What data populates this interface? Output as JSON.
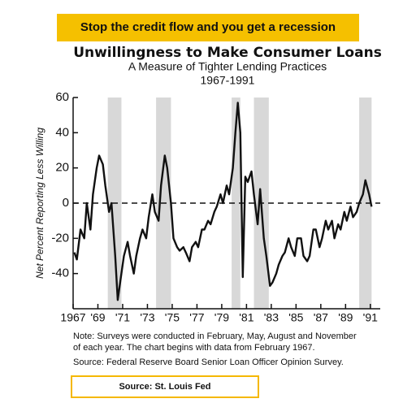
{
  "chart_data": {
    "type": "line",
    "banner": "Stop the credit flow and you get a recession",
    "title": "Unwillingness to Make Consumer Loans",
    "subtitle": "A Measure of Tighter Lending Practices",
    "period": "1967-1991",
    "y_label": "Net Percent Reporting Less Willing",
    "x": [
      1967.1,
      1967.3,
      1967.6,
      1967.9,
      1968.1,
      1968.4,
      1968.6,
      1968.9,
      1969.1,
      1969.4,
      1969.6,
      1969.9,
      1970.1,
      1970.4,
      1970.6,
      1970.9,
      1971.1,
      1971.4,
      1971.6,
      1971.9,
      1972.1,
      1972.4,
      1972.6,
      1972.9,
      1973.1,
      1973.4,
      1973.6,
      1973.9,
      1974.1,
      1974.4,
      1974.6,
      1974.9,
      1975.1,
      1975.4,
      1975.6,
      1975.9,
      1976.1,
      1976.4,
      1976.6,
      1976.9,
      1977.1,
      1977.4,
      1977.6,
      1977.9,
      1978.1,
      1978.4,
      1978.6,
      1978.9,
      1979.1,
      1979.4,
      1979.6,
      1979.9,
      1980.1,
      1980.3,
      1980.5,
      1980.7,
      1980.9,
      1981.1,
      1981.4,
      1981.6,
      1981.9,
      1982.1,
      1982.4,
      1982.6,
      1982.9,
      1983.1,
      1983.4,
      1983.6,
      1983.9,
      1984.1,
      1984.4,
      1984.6,
      1984.9,
      1985.1,
      1985.4,
      1985.6,
      1985.9,
      1986.1,
      1986.4,
      1986.6,
      1986.9,
      1987.1,
      1987.4,
      1987.6,
      1987.9,
      1988.1,
      1988.4,
      1988.6,
      1988.9,
      1989.1,
      1989.4,
      1989.6,
      1989.9,
      1990.1,
      1990.4,
      1990.6,
      1990.9,
      1991.1
    ],
    "values": [
      -28,
      -32,
      -15,
      -20,
      0,
      -15,
      5,
      20,
      27,
      22,
      10,
      -5,
      0,
      -30,
      -55,
      -40,
      -30,
      -22,
      -30,
      -40,
      -30,
      -20,
      -15,
      -20,
      -8,
      5,
      -5,
      -10,
      10,
      27,
      20,
      0,
      -20,
      -25,
      -27,
      -25,
      -28,
      -33,
      -25,
      -22,
      -25,
      -15,
      -15,
      -10,
      -12,
      -5,
      -2,
      5,
      0,
      10,
      5,
      20,
      40,
      57,
      40,
      -42,
      15,
      12,
      18,
      5,
      -12,
      8,
      -20,
      -30,
      -47,
      -45,
      -40,
      -35,
      -30,
      -28,
      -20,
      -25,
      -30,
      -20,
      -20,
      -30,
      -33,
      -30,
      -15,
      -15,
      -25,
      -20,
      -10,
      -15,
      -10,
      -20,
      -12,
      -15,
      -5,
      -10,
      -2,
      -8,
      -5,
      0,
      5,
      13,
      5,
      -2
    ],
    "color": "#111111",
    "shaded_periods": [
      [
        1969.8,
        1970.9
      ],
      [
        1973.7,
        1974.9
      ],
      [
        1979.8,
        1980.5
      ],
      [
        1981.6,
        1982.8
      ],
      [
        1990.1,
        1991.1
      ]
    ],
    "shade_color": "#d8d8d8",
    "xlim": [
      1967,
      1991.8
    ],
    "xticks": [
      1967,
      {
        "value": 1969,
        "label": "'69"
      },
      {
        "value": 1971,
        "label": "'71"
      },
      {
        "value": 1973,
        "label": "'73"
      },
      {
        "value": 1975,
        "label": "'75"
      },
      {
        "value": 1977,
        "label": "'77"
      },
      {
        "value": 1979,
        "label": "'79"
      },
      {
        "value": 1981,
        "label": "'81"
      },
      {
        "value": 1983,
        "label": "'83"
      },
      {
        "value": 1985,
        "label": "'85"
      },
      {
        "value": 1987,
        "label": "'87"
      },
      {
        "value": 1989,
        "label": "'89"
      },
      {
        "value": 1991,
        "label": "'91"
      }
    ],
    "ylim": [
      -60,
      60
    ],
    "yticks": [
      60,
      40,
      20,
      0,
      -20,
      -40
    ],
    "zero_line": true,
    "notes": [
      "Note:  Surveys were conducted in February, May, August and November",
      "of each year. The chart begins with data from February 1967."
    ],
    "source": "Source:  Federal Reserve Board Senior Loan Officer Opinion Survey.",
    "credit": "Source: St. Louis Fed"
  }
}
